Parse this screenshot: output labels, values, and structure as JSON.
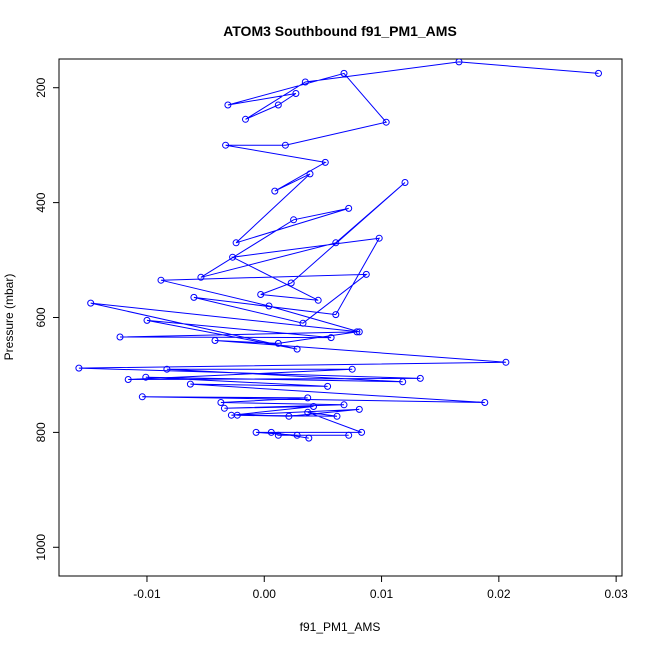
{
  "chart_data": {
    "type": "scatter",
    "title": "ATOM3 Southbound f91_PM1_AMS",
    "xlabel": "f91_PM1_AMS",
    "ylabel": "Pressure (mbar)",
    "xlim": [
      -0.0175,
      0.0305
    ],
    "ylim": [
      1050,
      150
    ],
    "y_reversed": true,
    "x_ticks": [
      -0.01,
      0.0,
      0.01,
      0.02,
      0.03
    ],
    "x_tick_labels": [
      "-0.01",
      "0.00",
      "0.01",
      "0.02",
      "0.03"
    ],
    "y_ticks": [
      200,
      400,
      600,
      800,
      1000
    ],
    "y_tick_labels": [
      "200",
      "400",
      "600",
      "800",
      "1000"
    ],
    "grid": false,
    "legend": "none",
    "marker": "open-circle",
    "connected": true,
    "color": "#0000ff",
    "series": [
      {
        "x": [
          0.0285,
          0.0166,
          0.0035,
          -0.0016,
          0.0012,
          0.0027,
          -0.0031,
          0.0068,
          0.0104,
          0.0018,
          -0.0033,
          0.0052,
          0.0009,
          0.0039,
          -0.0024,
          0.0072,
          0.0025,
          -0.0054,
          0.0061,
          0.012,
          0.0023,
          -0.0003,
          0.0046,
          -0.0027,
          0.0098,
          0.0061,
          -0.006,
          0.0033,
          0.0087,
          -0.0088,
          0.0004,
          0.0081,
          -0.0148,
          0.0028,
          -0.01,
          0.0057,
          -0.0123,
          0.0079,
          0.0012,
          -0.0042,
          0.0206,
          -0.0158,
          0.0133,
          -0.0116,
          0.0075,
          -0.0083,
          0.0118,
          -0.0101,
          0.0054,
          -0.0063,
          0.0188,
          -0.0104,
          0.0037,
          -0.0037,
          0.0068,
          -0.0034,
          0.0042,
          -0.0028,
          0.0081,
          0.0021,
          -0.0023,
          0.0062,
          0.0037,
          0.0083,
          -0.0007,
          0.0028,
          0.0072,
          0.0012,
          0.0006,
          0.0038
        ],
        "y": [
          175,
          155,
          190,
          255,
          230,
          210,
          230,
          175,
          260,
          300,
          300,
          330,
          380,
          350,
          470,
          410,
          430,
          530,
          470,
          365,
          540,
          560,
          570,
          495,
          462,
          595,
          565,
          610,
          525,
          535,
          580,
          625,
          575,
          655,
          605,
          635,
          634,
          625,
          645,
          640,
          678,
          688,
          706,
          708,
          690,
          690,
          712,
          704,
          720,
          716,
          748,
          738,
          740,
          748,
          752,
          758,
          755,
          770,
          760,
          772,
          770,
          772,
          765,
          800,
          800,
          805,
          805,
          805,
          800,
          810
        ]
      }
    ]
  }
}
